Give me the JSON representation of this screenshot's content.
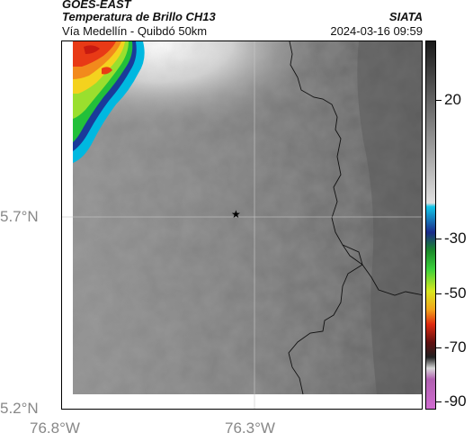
{
  "header": {
    "satellite": "GOES-EAST",
    "product": "Temperatura de Brillo CH13",
    "route": "Vía Medellín - Quibdó 50km",
    "org": "SIATA",
    "datetime": "2024-03-16 09:59"
  },
  "axes": {
    "lat_labels": [
      "5.7°N",
      "5.2°N"
    ],
    "lon_labels": [
      "76.8°W",
      "76.3°W"
    ]
  },
  "colorbar": {
    "tick_labels": [
      "20",
      "-30",
      "-50",
      "-70",
      "-90"
    ]
  },
  "marker": {
    "symbol": "★"
  }
}
